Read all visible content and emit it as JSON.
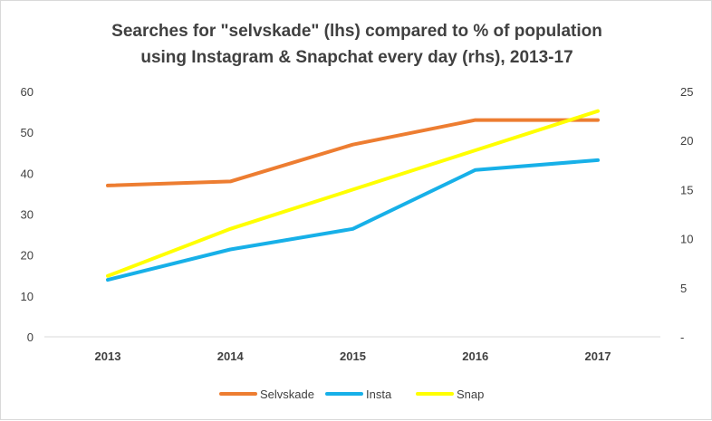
{
  "chart_data": {
    "type": "line",
    "title_lines": [
      "Searches for \"selvskade\" (lhs) compared to % of population",
      "using Instagram & Snapchat every day (rhs), 2013-17"
    ],
    "categories": [
      "2013",
      "2014",
      "2015",
      "2016",
      "2017"
    ],
    "y_left": {
      "range": [
        0,
        60
      ],
      "ticks": [
        0,
        10,
        20,
        30,
        40,
        50,
        60
      ],
      "tick_labels": [
        "0",
        "10",
        "20",
        "30",
        "40",
        "50",
        "60"
      ]
    },
    "y_right": {
      "range": [
        0,
        25
      ],
      "ticks": [
        0,
        5,
        10,
        15,
        20,
        25
      ],
      "tick_labels": [
        "-",
        "5",
        "10",
        "15",
        "20",
        "25"
      ]
    },
    "gridlines": false,
    "legend_position": "bottom",
    "series": [
      {
        "name": "Selvskade",
        "axis": "left",
        "color": "#ED7D31",
        "values": [
          37,
          38,
          47,
          53,
          53
        ]
      },
      {
        "name": "Insta",
        "axis": "right",
        "color": "#17B0E8",
        "values": [
          5.8,
          8.9,
          11,
          17,
          18
        ]
      },
      {
        "name": "Snap",
        "axis": "right",
        "color": "#FFFF00",
        "values": [
          6.2,
          11,
          15,
          19,
          23
        ]
      }
    ]
  }
}
